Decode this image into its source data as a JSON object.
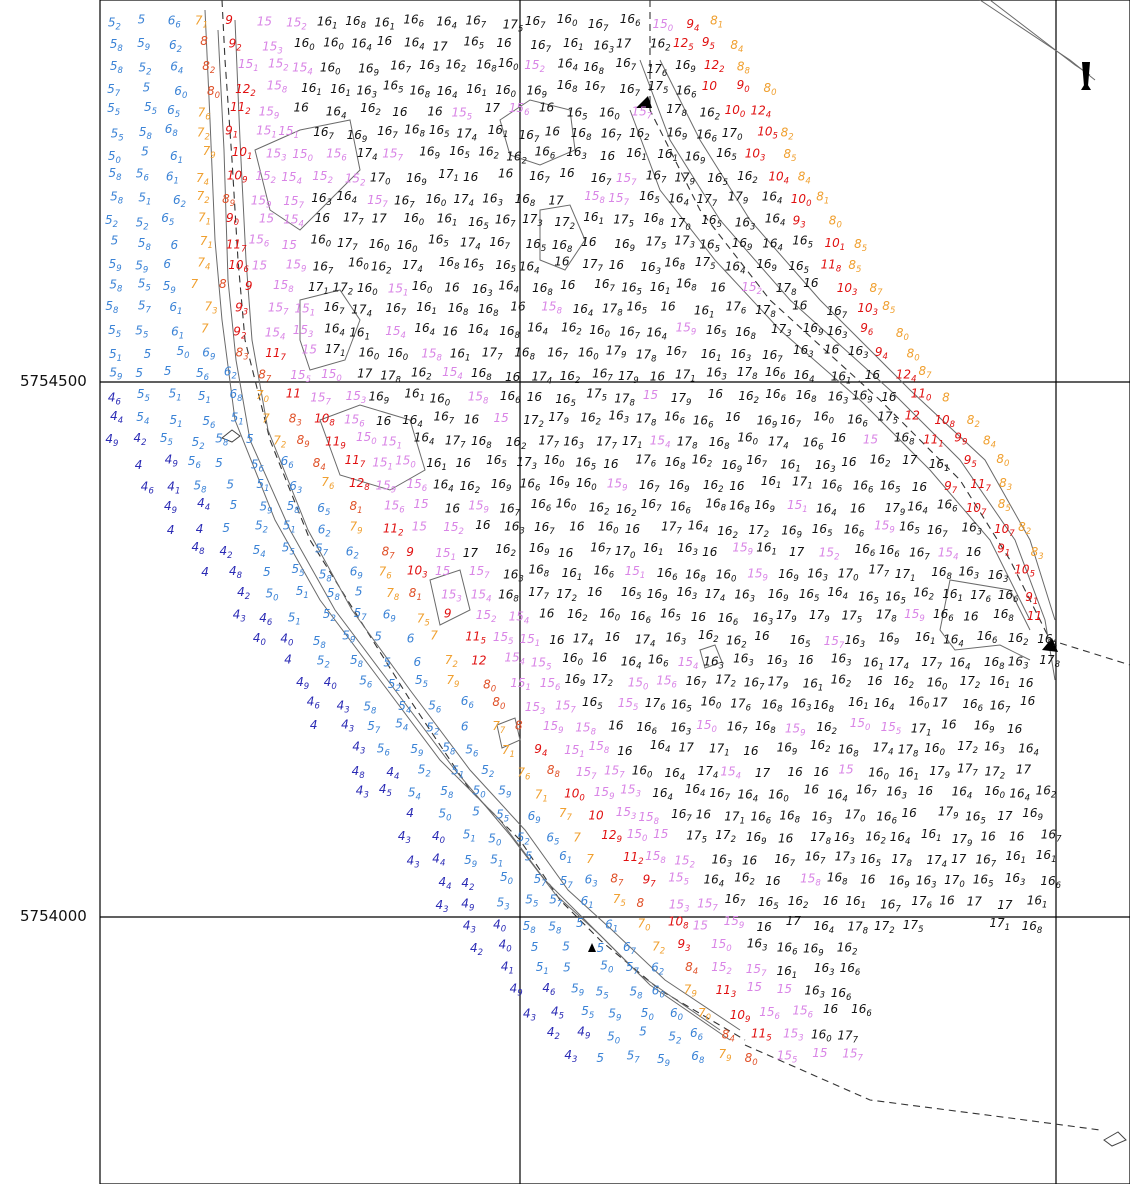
{
  "chart_data": {
    "type": "scatter",
    "title": "",
    "grid": true,
    "northing_labels": [
      "5754500",
      "5754000"
    ],
    "colors": {
      "navy": "#2b2bb5",
      "blue": "#3b83d6",
      "orange": "#f0a030",
      "redorange": "#e0522a",
      "red": "#e01010",
      "pink": "#d985e6",
      "black": "#111111"
    },
    "symbols": [
      "beacon-icon",
      "light-buoy-icon",
      "wreck-icon"
    ]
  }
}
